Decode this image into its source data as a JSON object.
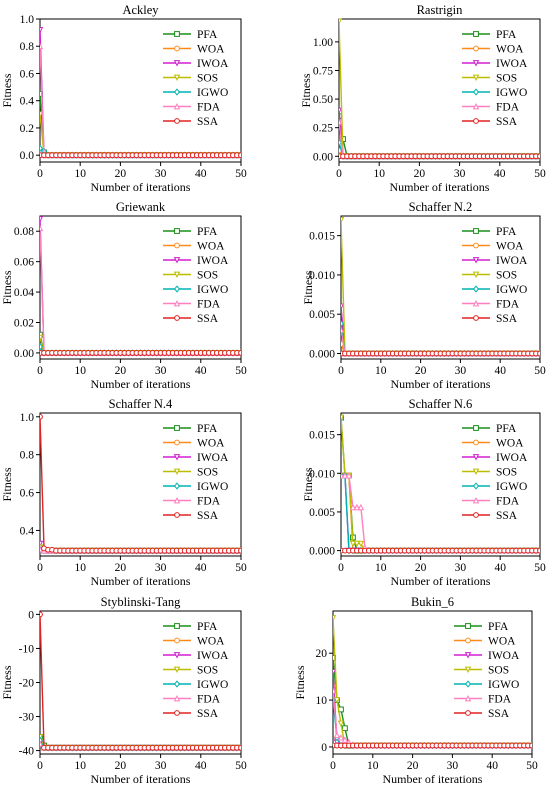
{
  "legend_labels": [
    "PFA",
    "WOA",
    "IWOA",
    "SOS",
    "IGWO",
    "FDA",
    "SSA"
  ],
  "series_colors": {
    "PFA": "#1a8f1a",
    "WOA": "#ff8c1a",
    "IWOA": "#d21fd2",
    "SOS": "#bdbd00",
    "IGWO": "#00b3b3",
    "FDA": "#ff7fbf",
    "SSA": "#e32222"
  },
  "marker_names": [
    "square-marker",
    "circle-marker",
    "triangle-down-marker",
    "triangle-down-marker",
    "diamond-marker",
    "triangle-up-marker",
    "circle-marker"
  ],
  "chart_data": [
    {
      "type": "line",
      "title": "Ackley",
      "xlabel": "Number of iterations",
      "ylabel": "Fitness",
      "xlim": [
        0,
        50
      ],
      "ylim": [
        -0.05,
        1.0
      ],
      "xticks": [
        0,
        10,
        20,
        30,
        40,
        50
      ],
      "yticks": [
        0.0,
        0.2,
        0.4,
        0.6,
        0.8,
        1.0
      ],
      "ytick_labels": [
        "0.0",
        "0.2",
        "0.4",
        "0.6",
        "0.8",
        "1.0"
      ],
      "grid": false,
      "legend": "upper-right",
      "series": [
        {
          "name": "PFA",
          "x": [
            0,
            1,
            2,
            50
          ],
          "y": [
            0.45,
            0.02,
            0,
            0
          ]
        },
        {
          "name": "WOA",
          "x": [
            0,
            1,
            50
          ],
          "y": [
            0.02,
            0,
            0
          ]
        },
        {
          "name": "IWOA",
          "x": [
            0,
            1,
            50
          ],
          "y": [
            0.92,
            0,
            0
          ]
        },
        {
          "name": "SOS",
          "x": [
            0,
            1,
            50
          ],
          "y": [
            0.3,
            0,
            0
          ]
        },
        {
          "name": "IGWO",
          "x": [
            0,
            1,
            2,
            50
          ],
          "y": [
            0.05,
            0.03,
            0,
            0
          ]
        },
        {
          "name": "FDA",
          "x": [
            0,
            1,
            50
          ],
          "y": [
            0.8,
            0,
            0
          ]
        },
        {
          "name": "SSA",
          "x": [
            0,
            50
          ],
          "y": [
            0,
            0
          ]
        }
      ]
    },
    {
      "type": "line",
      "title": "Rastrigin",
      "xlabel": "Number of iterations",
      "ylabel": "Fitness",
      "xlim": [
        0,
        50
      ],
      "ylim": [
        -0.05,
        1.2
      ],
      "xticks": [
        0,
        10,
        20,
        30,
        40,
        50
      ],
      "yticks": [
        0.0,
        0.25,
        0.5,
        0.75,
        1.0
      ],
      "ytick_labels": [
        "0.00",
        "0.25",
        "0.50",
        "0.75",
        "1.00"
      ],
      "grid": false,
      "legend": "upper-right",
      "series": [
        {
          "name": "PFA",
          "x": [
            0,
            1,
            2,
            50
          ],
          "y": [
            0.35,
            0.15,
            0,
            0
          ]
        },
        {
          "name": "WOA",
          "x": [
            0,
            1,
            50
          ],
          "y": [
            0.05,
            0,
            0
          ]
        },
        {
          "name": "IWOA",
          "x": [
            0,
            1,
            50
          ],
          "y": [
            0.4,
            0,
            0
          ]
        },
        {
          "name": "SOS",
          "x": [
            0,
            1,
            50
          ],
          "y": [
            1.18,
            0,
            0
          ]
        },
        {
          "name": "IGWO",
          "x": [
            0,
            1,
            50
          ],
          "y": [
            0.12,
            0,
            0
          ]
        },
        {
          "name": "FDA",
          "x": [
            0,
            1,
            50
          ],
          "y": [
            0.3,
            0,
            0
          ]
        },
        {
          "name": "SSA",
          "x": [
            0,
            50
          ],
          "y": [
            0,
            0
          ]
        }
      ]
    },
    {
      "type": "line",
      "title": "Griewank",
      "xlabel": "Number of iterations",
      "ylabel": "Fitness",
      "xlim": [
        0,
        50
      ],
      "ylim": [
        -0.004,
        0.09
      ],
      "xticks": [
        0,
        10,
        20,
        30,
        40,
        50
      ],
      "yticks": [
        0.0,
        0.02,
        0.04,
        0.06,
        0.08
      ],
      "ytick_labels": [
        "0.00",
        "0.02",
        "0.04",
        "0.06",
        "0.08"
      ],
      "grid": false,
      "legend": "upper-right",
      "series": [
        {
          "name": "PFA",
          "x": [
            0,
            1,
            50
          ],
          "y": [
            0.012,
            0,
            0
          ]
        },
        {
          "name": "WOA",
          "x": [
            0,
            1,
            50
          ],
          "y": [
            0.003,
            0,
            0
          ]
        },
        {
          "name": "IWOA",
          "x": [
            0,
            1,
            50
          ],
          "y": [
            0.088,
            0,
            0
          ]
        },
        {
          "name": "SOS",
          "x": [
            0,
            1,
            50
          ],
          "y": [
            0.01,
            0,
            0
          ]
        },
        {
          "name": "IGWO",
          "x": [
            0,
            1,
            50
          ],
          "y": [
            0.004,
            0,
            0
          ]
        },
        {
          "name": "FDA",
          "x": [
            0,
            1,
            50
          ],
          "y": [
            0.082,
            0,
            0
          ]
        },
        {
          "name": "SSA",
          "x": [
            0,
            50
          ],
          "y": [
            0,
            0
          ]
        }
      ]
    },
    {
      "type": "line",
      "title": "Schaffer N.2",
      "xlabel": "Number of iterations",
      "ylabel": "Fitness",
      "xlim": [
        0,
        50
      ],
      "ylim": [
        -0.0007,
        0.0175
      ],
      "xticks": [
        0,
        10,
        20,
        30,
        40,
        50
      ],
      "yticks": [
        0.0,
        0.005,
        0.01,
        0.015
      ],
      "ytick_labels": [
        "0.000",
        "0.005",
        "0.010",
        "0.015"
      ],
      "grid": false,
      "legend": "upper-right",
      "series": [
        {
          "name": "PFA",
          "x": [
            0,
            1,
            50
          ],
          "y": [
            0.0035,
            0,
            0
          ]
        },
        {
          "name": "WOA",
          "x": [
            0,
            1,
            50
          ],
          "y": [
            0.0012,
            0,
            0
          ]
        },
        {
          "name": "IWOA",
          "x": [
            0,
            1,
            50
          ],
          "y": [
            0.006,
            0,
            0
          ]
        },
        {
          "name": "SOS",
          "x": [
            0,
            1,
            50
          ],
          "y": [
            0.017,
            0,
            0
          ]
        },
        {
          "name": "IGWO",
          "x": [
            0,
            1,
            50
          ],
          "y": [
            0.0038,
            0,
            0
          ]
        },
        {
          "name": "FDA",
          "x": [
            0,
            1,
            50
          ],
          "y": [
            0.003,
            0,
            0
          ]
        },
        {
          "name": "SSA",
          "x": [
            0,
            50
          ],
          "y": [
            0,
            0
          ]
        }
      ]
    },
    {
      "type": "line",
      "title": "Schaffer N.4",
      "xlabel": "Number of iterations",
      "ylabel": "Fitness",
      "xlim": [
        0,
        50
      ],
      "ylim": [
        0.265,
        1.02
      ],
      "xticks": [
        0,
        10,
        20,
        30,
        40,
        50
      ],
      "yticks": [
        0.4,
        0.6,
        0.8,
        1.0
      ],
      "ytick_labels": [
        "0.4",
        "0.6",
        "0.8",
        "1.0"
      ],
      "grid": false,
      "legend": "upper-right",
      "series": [
        {
          "name": "PFA",
          "x": [
            0,
            1,
            2,
            50
          ],
          "y": [
            0.31,
            0.295,
            0.293,
            0.293
          ]
        },
        {
          "name": "WOA",
          "x": [
            0,
            1,
            50
          ],
          "y": [
            0.3,
            0.293,
            0.293
          ]
        },
        {
          "name": "IWOA",
          "x": [
            0,
            1,
            50
          ],
          "y": [
            0.33,
            0.293,
            0.293
          ]
        },
        {
          "name": "SOS",
          "x": [
            0,
            1,
            50
          ],
          "y": [
            0.31,
            0.293,
            0.293
          ]
        },
        {
          "name": "IGWO",
          "x": [
            0,
            1,
            50
          ],
          "y": [
            0.3,
            0.293,
            0.293
          ]
        },
        {
          "name": "FDA",
          "x": [
            0,
            1,
            50
          ],
          "y": [
            0.3,
            0.293,
            0.293
          ]
        },
        {
          "name": "SSA",
          "x": [
            0,
            1,
            2,
            4,
            50
          ],
          "y": [
            1.0,
            0.305,
            0.298,
            0.293,
            0.293
          ]
        }
      ]
    },
    {
      "type": "line",
      "title": "Schaffer N.6",
      "xlabel": "Number of iterations",
      "ylabel": "Fitness",
      "xlim": [
        0,
        50
      ],
      "ylim": [
        -0.0007,
        0.0178
      ],
      "xticks": [
        0,
        10,
        20,
        30,
        40,
        50
      ],
      "yticks": [
        0.0,
        0.005,
        0.01,
        0.015
      ],
      "ytick_labels": [
        "0.000",
        "0.005",
        "0.010",
        "0.015"
      ],
      "grid": false,
      "legend": "upper-right",
      "series": [
        {
          "name": "PFA",
          "x": [
            0,
            1,
            2,
            3,
            4,
            50
          ],
          "y": [
            0.0172,
            0.0097,
            0.0097,
            0.0017,
            0,
            0
          ]
        },
        {
          "name": "WOA",
          "x": [
            0,
            1,
            2,
            3,
            50
          ],
          "y": [
            0.0097,
            0.0097,
            0.0097,
            0,
            0
          ]
        },
        {
          "name": "IWOA",
          "x": [
            0,
            1,
            2,
            50
          ],
          "y": [
            0.0097,
            0.0097,
            0,
            0
          ]
        },
        {
          "name": "SOS",
          "x": [
            0,
            1,
            2,
            3,
            4,
            5,
            6,
            50
          ],
          "y": [
            0.0172,
            0.0097,
            0.0097,
            0.0009,
            0.0009,
            0.0009,
            0,
            0
          ]
        },
        {
          "name": "IGWO",
          "x": [
            0,
            1,
            2,
            50
          ],
          "y": [
            0.0097,
            0.0097,
            0,
            0
          ]
        },
        {
          "name": "FDA",
          "x": [
            0,
            1,
            2,
            3,
            4,
            5,
            6,
            7,
            50
          ],
          "y": [
            0.0097,
            0.0097,
            0.0097,
            0.0056,
            0.0056,
            0.0056,
            0.0004,
            0,
            0
          ]
        },
        {
          "name": "SSA",
          "x": [
            0,
            50
          ],
          "y": [
            0,
            0
          ]
        }
      ]
    },
    {
      "type": "line",
      "title": "Styblinski-Tang",
      "xlabel": "Number of iterations",
      "ylabel": "Fitness",
      "xlim": [
        0,
        50
      ],
      "ylim": [
        -41,
        1
      ],
      "xticks": [
        0,
        10,
        20,
        30,
        40,
        50
      ],
      "yticks": [
        -40,
        -30,
        -20,
        -10,
        0
      ],
      "ytick_labels": [
        "-40",
        "-30",
        "-20",
        "-10",
        "0"
      ],
      "grid": false,
      "legend": "upper-right",
      "series": [
        {
          "name": "PFA",
          "x": [
            0,
            1,
            2,
            50
          ],
          "y": [
            -36,
            -38.5,
            -39.17,
            -39.17
          ]
        },
        {
          "name": "WOA",
          "x": [
            0,
            1,
            50
          ],
          "y": [
            -37,
            -39.17,
            -39.17
          ]
        },
        {
          "name": "IWOA",
          "x": [
            0,
            1,
            50
          ],
          "y": [
            -38,
            -39.17,
            -39.17
          ]
        },
        {
          "name": "SOS",
          "x": [
            0,
            1,
            50
          ],
          "y": [
            -36,
            -39.17,
            -39.17
          ]
        },
        {
          "name": "IGWO",
          "x": [
            0,
            1,
            50
          ],
          "y": [
            -37,
            -39.17,
            -39.17
          ]
        },
        {
          "name": "FDA",
          "x": [
            0,
            1,
            50
          ],
          "y": [
            -38,
            -39.17,
            -39.17
          ]
        },
        {
          "name": "SSA",
          "x": [
            0,
            1,
            50
          ],
          "y": [
            0,
            -39.17,
            -39.17
          ]
        }
      ]
    },
    {
      "type": "line",
      "title": "Bukin_6",
      "xlabel": "Number of iterations",
      "ylabel": "Fitness",
      "xlim": [
        0,
        50
      ],
      "ylim": [
        -1.5,
        29
      ],
      "xticks": [
        0,
        10,
        20,
        30,
        40,
        50
      ],
      "yticks": [
        0,
        10,
        20
      ],
      "ytick_labels": [
        "0",
        "10",
        "20"
      ],
      "grid": false,
      "legend": "upper-right",
      "series": [
        {
          "name": "PFA",
          "x": [
            0,
            1,
            2,
            3,
            4,
            50
          ],
          "y": [
            19,
            10,
            8,
            4,
            0.3,
            0.3
          ]
        },
        {
          "name": "WOA",
          "x": [
            0,
            1,
            2,
            50
          ],
          "y": [
            13,
            2,
            0.3,
            0.3
          ]
        },
        {
          "name": "IWOA",
          "x": [
            0,
            1,
            2,
            50
          ],
          "y": [
            16,
            1,
            0.3,
            0.3
          ]
        },
        {
          "name": "SOS",
          "x": [
            0,
            1,
            2,
            3,
            50
          ],
          "y": [
            27.5,
            10,
            5,
            0.3,
            0.3
          ]
        },
        {
          "name": "IGWO",
          "x": [
            0,
            1,
            2,
            50
          ],
          "y": [
            10,
            2,
            0.3,
            0.3
          ]
        },
        {
          "name": "FDA",
          "x": [
            0,
            1,
            2,
            3,
            4,
            5,
            6,
            50
          ],
          "y": [
            12,
            2.5,
            2,
            1.5,
            1,
            0.5,
            0.3,
            0.3
          ]
        },
        {
          "name": "SSA",
          "x": [
            0,
            50
          ],
          "y": [
            0.3,
            0.3
          ]
        }
      ]
    }
  ]
}
